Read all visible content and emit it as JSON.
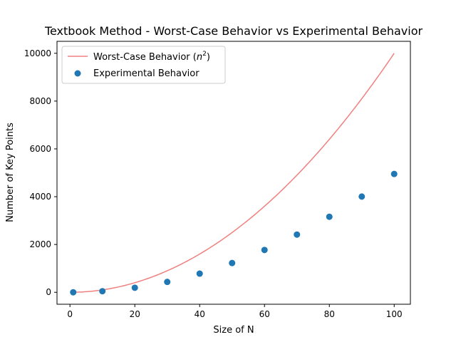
{
  "chart_data": {
    "type": "line+scatter",
    "title": "Textbook Method - Worst-Case Behavior vs Experimental Behavior",
    "xlabel": "Size of N",
    "ylabel": "Number of Key Points",
    "xlim": [
      -4.0,
      105.0
    ],
    "ylim": [
      -500,
      10500
    ],
    "xticks": [
      0,
      20,
      40,
      60,
      80,
      100
    ],
    "yticks": [
      0,
      2000,
      4000,
      6000,
      8000,
      10000
    ],
    "grid": false,
    "legend_position": "upper-left",
    "line_series": {
      "name_prefix": "Worst-Case Behavior (",
      "name_math": "n",
      "name_exp": "2",
      "name_suffix": ")",
      "formula": "n^2",
      "x_start": 1,
      "x_end": 100,
      "color": "#f08080"
    },
    "scatter_series": {
      "name": "Experimental Behavior",
      "color": "#1f77b4",
      "x": [
        1,
        10,
        20,
        30,
        40,
        50,
        60,
        70,
        80,
        90,
        100
      ],
      "y": [
        0,
        45,
        190,
        435,
        780,
        1225,
        1770,
        2415,
        3160,
        4005,
        4950
      ]
    }
  }
}
